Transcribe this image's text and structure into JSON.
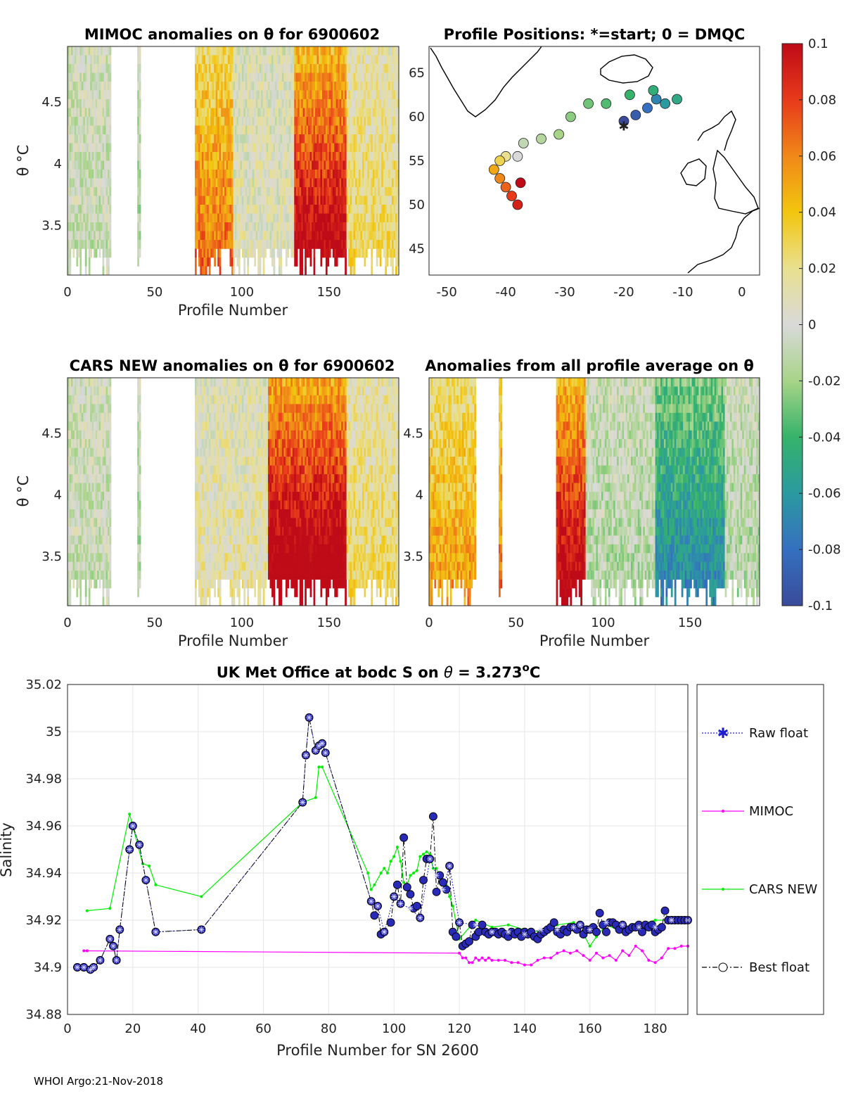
{
  "footer": "WHOI Argo:21-Nov-2018",
  "colors": {
    "raw": "#1f1fcf",
    "mimoc": "#ff00ff",
    "cars": "#00ee00",
    "best": "#000000",
    "marker_fill": "#2a2ab8",
    "grid": "#e6e6e6",
    "nan": "#ffffff"
  },
  "chart_data": [
    {
      "id": "mimoc",
      "type": "heatmap",
      "title": "MIMOC anomalies on θ  for 6900602",
      "xlabel": "Profile Number",
      "ylabel": "θ °C",
      "xlim": [
        0,
        190
      ],
      "ylim": [
        3.1,
        4.95
      ],
      "xticks": [
        "0",
        "50",
        "100",
        "150"
      ],
      "xtick_values": [
        0,
        50,
        100,
        150
      ],
      "yticks": [
        "3.5",
        "4",
        "4.5"
      ],
      "ytick_values": [
        3.5,
        4,
        4.5
      ],
      "data_range": [
        0,
        190
      ],
      "segments": [
        {
          "from": 0,
          "to": 25,
          "anomaly": -0.005
        },
        {
          "from": 40,
          "to": 42,
          "anomaly": -0.01
        },
        {
          "from": 73,
          "to": 95,
          "anomaly": 0.05
        },
        {
          "from": 95,
          "to": 130,
          "anomaly": 0.005
        },
        {
          "from": 130,
          "to": 160,
          "anomaly": 0.08
        },
        {
          "from": 160,
          "to": 190,
          "anomaly": 0.02
        }
      ]
    },
    {
      "id": "positions",
      "type": "scatter",
      "title": "Profile Positions: *=start; 0 = DMQC",
      "xlim": [
        -53,
        3
      ],
      "ylim": [
        42,
        68
      ],
      "xticks": [
        "-50",
        "-40",
        "-30",
        "-20",
        "-10",
        "0"
      ],
      "xtick_values": [
        -50,
        -40,
        -30,
        -20,
        -10,
        0
      ],
      "yticks": [
        "45",
        "50",
        "55",
        "60",
        "65"
      ],
      "ytick_values": [
        45,
        50,
        55,
        60,
        65
      ],
      "start": {
        "lon": -20,
        "lat": 59
      },
      "track": [
        {
          "lon": -20,
          "lat": 59.5,
          "c": -0.1
        },
        {
          "lon": -18,
          "lat": 60.2,
          "c": -0.09
        },
        {
          "lon": -16,
          "lat": 61,
          "c": -0.08
        },
        {
          "lon": -14.5,
          "lat": 62,
          "c": -0.07
        },
        {
          "lon": -13,
          "lat": 61.5,
          "c": -0.06
        },
        {
          "lon": -11,
          "lat": 62,
          "c": -0.05
        },
        {
          "lon": -15,
          "lat": 63,
          "c": -0.045
        },
        {
          "lon": -19,
          "lat": 62.5,
          "c": -0.04
        },
        {
          "lon": -23,
          "lat": 61.5,
          "c": -0.035
        },
        {
          "lon": -26,
          "lat": 61.5,
          "c": -0.03
        },
        {
          "lon": -29,
          "lat": 60,
          "c": -0.025
        },
        {
          "lon": -31,
          "lat": 58,
          "c": -0.02
        },
        {
          "lon": -34,
          "lat": 57.5,
          "c": -0.015
        },
        {
          "lon": -37,
          "lat": 57,
          "c": -0.01
        },
        {
          "lon": -38,
          "lat": 55.5,
          "c": 0.0
        },
        {
          "lon": -40,
          "lat": 55.5,
          "c": 0.02
        },
        {
          "lon": -41,
          "lat": 55,
          "c": 0.03
        },
        {
          "lon": -42,
          "lat": 54,
          "c": 0.05
        },
        {
          "lon": -41,
          "lat": 53,
          "c": 0.06
        },
        {
          "lon": -40,
          "lat": 52,
          "c": 0.07
        },
        {
          "lon": -39,
          "lat": 51,
          "c": 0.08
        },
        {
          "lon": -38,
          "lat": 50,
          "c": 0.09
        },
        {
          "lon": -37.5,
          "lat": 52.5,
          "c": 0.1
        }
      ]
    },
    {
      "id": "cars",
      "type": "heatmap",
      "title": "CARS NEW anomalies on θ for 6900602",
      "xlabel": "Profile Number",
      "ylabel": "θ °C",
      "xlim": [
        0,
        190
      ],
      "ylim": [
        3.1,
        4.95
      ],
      "xticks": [
        "0",
        "50",
        "100",
        "150"
      ],
      "xtick_values": [
        0,
        50,
        100,
        150
      ],
      "yticks": [
        "3.5",
        "4",
        "4.5"
      ],
      "ytick_values": [
        3.5,
        4,
        4.5
      ],
      "segments": [
        {
          "from": 0,
          "to": 25,
          "anomaly": -0.005
        },
        {
          "from": 40,
          "to": 42,
          "anomaly": -0.01
        },
        {
          "from": 73,
          "to": 115,
          "anomaly": 0.01
        },
        {
          "from": 115,
          "to": 160,
          "anomaly": 0.09
        },
        {
          "from": 160,
          "to": 190,
          "anomaly": 0.02
        }
      ]
    },
    {
      "id": "avg",
      "type": "heatmap",
      "title": "Anomalies from all profile average on θ",
      "xlabel": "Profile Number",
      "xlim": [
        0,
        190
      ],
      "ylim": [
        3.1,
        4.95
      ],
      "xticks": [
        "0",
        "50",
        "100",
        "150"
      ],
      "xtick_values": [
        0,
        50,
        100,
        150
      ],
      "yticks": [
        "3.5",
        "4",
        "4.5"
      ],
      "ytick_values": [
        3.5,
        4,
        4.5
      ],
      "segments": [
        {
          "from": 0,
          "to": 27,
          "anomaly": 0.04
        },
        {
          "from": 40,
          "to": 42,
          "anomaly": 0.05
        },
        {
          "from": 73,
          "to": 90,
          "anomaly": 0.08
        },
        {
          "from": 90,
          "to": 130,
          "anomaly": -0.01
        },
        {
          "from": 130,
          "to": 170,
          "anomaly": -0.05
        },
        {
          "from": 170,
          "to": 190,
          "anomaly": -0.01
        }
      ]
    },
    {
      "id": "colorbar",
      "type": "colorbar",
      "range": [
        -0.1,
        0.1
      ],
      "ticks": [
        "0.1",
        "0.08",
        "0.06",
        "0.04",
        "0.02",
        "0",
        "-0.02",
        "-0.04",
        "-0.06",
        "-0.08",
        "-0.1"
      ],
      "tick_values": [
        0.1,
        0.08,
        0.06,
        0.04,
        0.02,
        0,
        -0.02,
        -0.04,
        -0.06,
        -0.08,
        -0.1
      ]
    },
    {
      "id": "salinity",
      "type": "line",
      "title_main": "UK Met Office at bodc S on ",
      "title_theta": "θ",
      "title_value": " = 3.273",
      "title_sup": "o",
      "title_unit": "C",
      "xlabel": "Profile Number for SN 2600",
      "ylabel": "Salinity",
      "xlim": [
        0,
        190
      ],
      "ylim": [
        34.88,
        35.02
      ],
      "xticks": [
        "0",
        "20",
        "40",
        "60",
        "80",
        "100",
        "120",
        "140",
        "160",
        "180"
      ],
      "xtick_values": [
        0,
        20,
        40,
        60,
        80,
        100,
        120,
        140,
        160,
        180
      ],
      "yticks": [
        "35.02",
        "35",
        "34.98",
        "34.96",
        "34.94",
        "34.92",
        "34.9",
        "34.88"
      ],
      "ytick_values": [
        35.02,
        35,
        34.98,
        34.96,
        34.94,
        34.92,
        34.9,
        34.88
      ],
      "legend": [
        "Raw float",
        "MIMOC",
        "CARS NEW",
        "Best float"
      ],
      "series": [
        {
          "name": "Best float",
          "x": [
            3,
            5,
            7,
            8,
            10,
            13,
            14,
            15,
            16,
            19,
            20,
            22,
            24,
            27,
            41,
            72,
            73,
            74,
            76,
            77,
            78,
            79,
            93,
            94,
            95,
            96,
            97,
            99,
            100,
            101,
            102,
            103,
            104,
            105,
            106,
            107,
            108,
            109,
            110,
            111,
            112,
            113,
            114,
            115,
            116,
            117,
            118,
            119,
            120,
            121,
            122,
            123,
            124,
            125,
            126,
            127,
            128,
            129,
            130,
            131,
            132,
            133,
            134,
            135,
            136,
            137,
            138,
            139,
            140,
            141,
            142,
            143,
            144,
            145,
            146,
            147,
            148,
            149,
            150,
            151,
            152,
            153,
            154,
            155,
            156,
            157,
            158,
            159,
            160,
            161,
            162,
            163,
            164,
            165,
            166,
            167,
            168,
            169,
            170,
            171,
            172,
            173,
            174,
            175,
            176,
            177,
            178,
            179,
            180,
            181,
            182,
            183,
            184,
            185,
            186,
            187,
            188,
            189,
            190
          ],
          "y": [
            34.9,
            34.9,
            34.899,
            34.9,
            34.903,
            34.912,
            34.909,
            34.903,
            34.916,
            34.95,
            34.96,
            34.952,
            34.937,
            34.915,
            34.916,
            34.97,
            34.99,
            35.006,
            34.992,
            34.994,
            34.995,
            34.991,
            34.928,
            34.922,
            34.926,
            34.914,
            34.915,
            34.919,
            34.93,
            34.935,
            34.927,
            34.955,
            34.934,
            34.931,
            34.925,
            34.926,
            34.921,
            34.937,
            34.946,
            34.946,
            34.964,
            34.932,
            34.939,
            34.936,
            34.933,
            34.943,
            34.915,
            34.913,
            34.919,
            34.909,
            34.91,
            34.911,
            34.918,
            34.913,
            34.915,
            34.918,
            34.915,
            34.914,
            34.915,
            34.915,
            34.914,
            34.915,
            34.914,
            34.913,
            34.915,
            34.914,
            34.915,
            34.913,
            34.915,
            34.914,
            34.915,
            34.913,
            34.912,
            34.914,
            34.915,
            34.916,
            34.917,
            34.919,
            34.915,
            34.914,
            34.916,
            34.915,
            34.917,
            34.917,
            34.916,
            34.918,
            34.914,
            34.916,
            34.916,
            34.917,
            34.915,
            34.923,
            34.918,
            34.915,
            34.919,
            34.919,
            34.918,
            34.916,
            34.918,
            34.915,
            34.916,
            34.917,
            34.917,
            34.918,
            34.915,
            34.918,
            34.917,
            34.918,
            34.915,
            34.916,
            34.917,
            34.924,
            34.92,
            34.92,
            34.92,
            34.92,
            34.92,
            34.92,
            34.92
          ]
        },
        {
          "name": "MIMOC",
          "x": [
            5,
            6,
            120,
            121,
            122,
            123,
            124,
            125,
            126,
            127,
            128,
            129,
            130,
            132,
            134,
            136,
            138,
            140,
            142,
            144,
            146,
            148,
            150,
            152,
            154,
            156,
            158,
            160,
            162,
            164,
            166,
            168,
            170,
            172,
            174,
            176,
            178,
            180,
            182,
            184,
            186,
            188,
            190
          ],
          "y": [
            34.907,
            34.907,
            34.906,
            34.904,
            34.904,
            34.902,
            34.902,
            34.904,
            34.903,
            34.904,
            34.903,
            34.904,
            34.903,
            34.903,
            34.903,
            34.902,
            34.902,
            34.901,
            34.901,
            34.903,
            34.904,
            34.904,
            34.906,
            34.907,
            34.906,
            34.907,
            34.905,
            34.903,
            34.906,
            34.904,
            34.905,
            34.903,
            34.907,
            34.905,
            34.909,
            34.907,
            34.903,
            34.902,
            34.904,
            34.908,
            34.908,
            34.909,
            34.909
          ]
        },
        {
          "name": "CARS NEW",
          "x": [
            6,
            13,
            19,
            23,
            25,
            27,
            41,
            72,
            76,
            77,
            78,
            92,
            93,
            94,
            96,
            97,
            98,
            99,
            100,
            101,
            102,
            103,
            104,
            105,
            106,
            107,
            108,
            109,
            110,
            111,
            112,
            113,
            114,
            115,
            116,
            117,
            118,
            120,
            125,
            130,
            135,
            140,
            145,
            150,
            155,
            158,
            160,
            162,
            165,
            170,
            175,
            180,
            185,
            190
          ],
          "y": [
            34.924,
            34.925,
            34.965,
            34.944,
            34.943,
            34.935,
            34.93,
            34.97,
            34.972,
            34.985,
            34.985,
            34.94,
            34.933,
            34.935,
            34.94,
            34.942,
            34.94,
            34.945,
            34.947,
            34.951,
            34.945,
            34.936,
            34.935,
            34.939,
            34.94,
            34.941,
            34.947,
            34.948,
            34.949,
            34.948,
            34.942,
            34.942,
            34.938,
            34.937,
            34.935,
            34.93,
            34.926,
            34.912,
            34.92,
            34.917,
            34.918,
            34.916,
            34.915,
            34.918,
            34.919,
            34.914,
            34.909,
            34.913,
            34.918,
            34.915,
            34.918,
            34.92,
            34.92,
            34.92
          ]
        },
        {
          "name": "Raw float",
          "x": [
            3,
            5,
            7,
            8,
            10,
            13,
            14,
            15,
            16,
            19,
            20,
            22,
            24,
            27,
            41,
            72,
            73,
            74,
            76,
            77,
            78,
            79,
            93,
            95,
            97,
            100,
            102,
            105,
            108,
            111,
            113,
            115,
            117,
            120,
            125,
            130,
            135,
            140,
            145,
            150,
            155,
            157,
            160,
            165,
            170,
            175,
            180,
            185,
            190
          ],
          "y": [
            34.9,
            34.9,
            34.899,
            34.9,
            34.903,
            34.912,
            34.909,
            34.903,
            34.916,
            34.95,
            34.96,
            34.952,
            34.937,
            34.915,
            34.916,
            34.97,
            34.99,
            35.006,
            34.992,
            34.994,
            34.995,
            34.991,
            34.928,
            34.926,
            34.915,
            34.93,
            34.927,
            34.925,
            34.921,
            34.946,
            34.939,
            34.933,
            34.943,
            34.919,
            34.918,
            34.915,
            34.915,
            34.914,
            34.916,
            34.916,
            34.917,
            34.918,
            34.916,
            34.919,
            34.918,
            34.917,
            34.917,
            34.92,
            34.92
          ]
        }
      ]
    }
  ]
}
